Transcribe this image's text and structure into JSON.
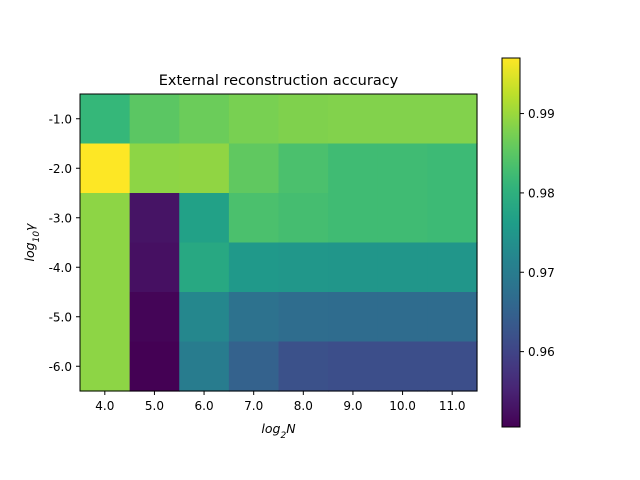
{
  "chart_data": {
    "type": "heatmap",
    "title": "External reconstruction accuracy",
    "xlabel": "log_2N",
    "ylabel": "log_10γ",
    "x_categories": [
      "4.0",
      "5.0",
      "6.0",
      "7.0",
      "8.0",
      "9.0",
      "10.0",
      "11.0"
    ],
    "y_categories": [
      "-1.0",
      "-2.0",
      "-3.0",
      "-4.0",
      "-5.0",
      "-6.0"
    ],
    "values": [
      [
        0.9815,
        0.985,
        0.9865,
        0.9875,
        0.988,
        0.9882,
        0.9882,
        0.9882
      ],
      [
        0.997,
        0.989,
        0.9892,
        0.9855,
        0.9835,
        0.9825,
        0.9825,
        0.9822
      ],
      [
        0.989,
        0.953,
        0.977,
        0.9835,
        0.983,
        0.9825,
        0.9825,
        0.9822
      ],
      [
        0.989,
        0.9525,
        0.9785,
        0.9755,
        0.975,
        0.9748,
        0.9748,
        0.9748
      ],
      [
        0.989,
        0.951,
        0.972,
        0.968,
        0.967,
        0.9668,
        0.9668,
        0.9668
      ],
      [
        0.989,
        0.9505,
        0.97,
        0.965,
        0.962,
        0.9615,
        0.9615,
        0.9615
      ]
    ],
    "colormap": "viridis",
    "colorbar": {
      "vmin": 0.9505,
      "vmax": 0.997,
      "ticks": [
        0.96,
        0.97,
        0.98,
        0.99
      ],
      "tick_labels": [
        "0.96",
        "0.97",
        "0.98",
        "0.99"
      ]
    }
  }
}
